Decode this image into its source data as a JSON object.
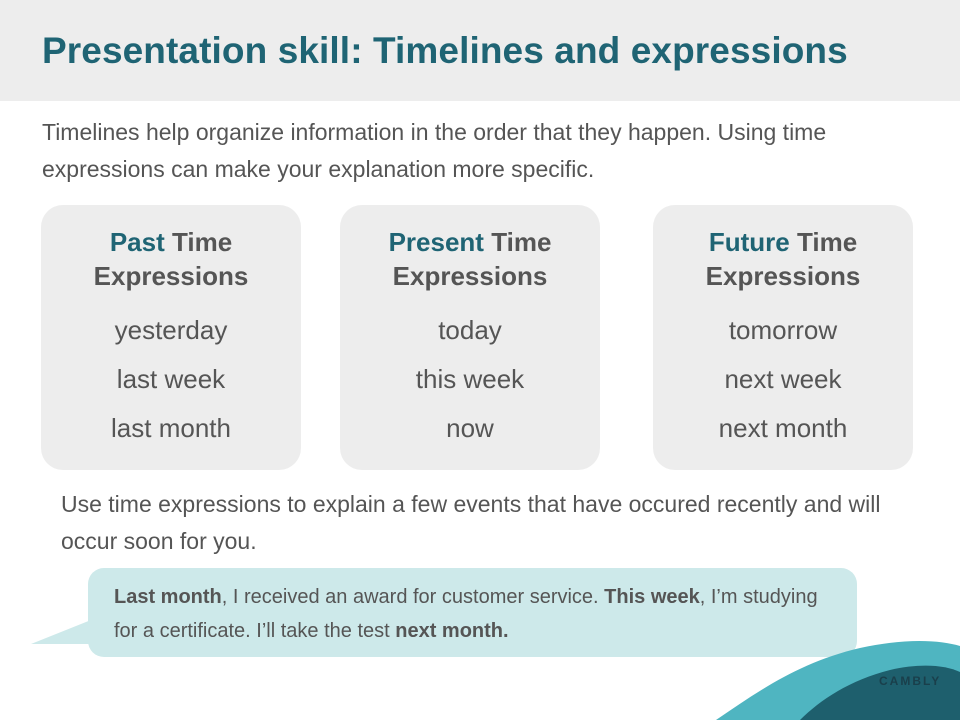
{
  "slide": {
    "title": "Presentation skill: Timelines and expressions",
    "intro": "Timelines help organize information in the order that they happen. Using time expressions can make your explanation more specific."
  },
  "cards": [
    {
      "accent": "Past",
      "heading_rest": " Time",
      "heading_line2": "Expressions",
      "items": [
        "yesterday",
        "last week",
        "last month"
      ]
    },
    {
      "accent": "Present",
      "heading_rest": " Time",
      "heading_line2": "Expressions",
      "items": [
        "today",
        "this week",
        "now"
      ]
    },
    {
      "accent": "Future",
      "heading_rest": " Time",
      "heading_line2": "Expressions",
      "items": [
        "tomorrow",
        "next week",
        "next month"
      ]
    }
  ],
  "prompt": "Use time expressions to explain a few events that have occured recently and will occur soon for you.",
  "example": {
    "seg1_bold": "Last month",
    "seg2": ", I received an award for customer service. ",
    "seg3_bold": "This week",
    "seg4": ", I’m studying for a certificate. I’ll take the test ",
    "seg5_bold": "next month."
  },
  "brand": {
    "logo_text": "CAMBLY"
  },
  "colors": {
    "title": "#1f6474",
    "accent": "#1f6474",
    "body_text": "#555555",
    "card_bg": "#ededed",
    "bubble_bg": "#cde9ea",
    "wave_light": "#4fb5c1",
    "wave_dark": "#1e5f6d"
  }
}
